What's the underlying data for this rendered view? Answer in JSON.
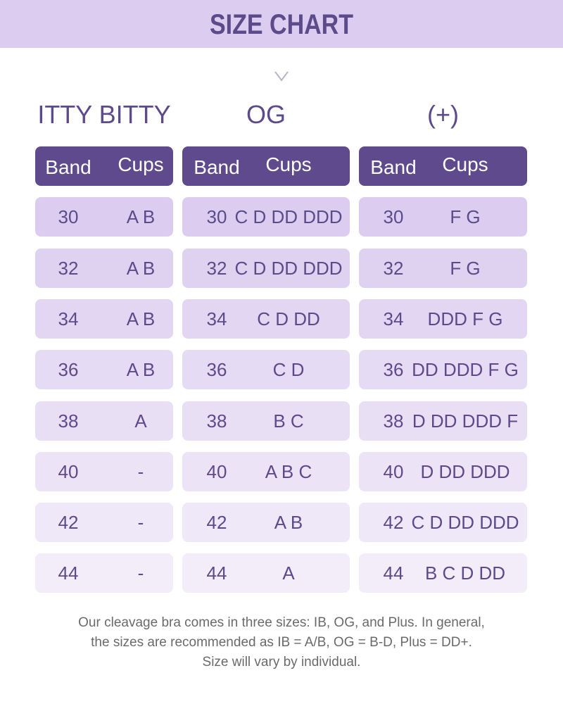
{
  "header": {
    "title": "SIZE CHART"
  },
  "tables": [
    {
      "title": "ITTY BITTY",
      "columns": [
        "Band",
        "Cups"
      ],
      "rows": [
        [
          "30",
          "A B"
        ],
        [
          "32",
          "A B"
        ],
        [
          "34",
          "A B"
        ],
        [
          "36",
          "A B"
        ],
        [
          "38",
          "A"
        ],
        [
          "40",
          "-"
        ],
        [
          "42",
          "-"
        ],
        [
          "44",
          "-"
        ]
      ]
    },
    {
      "title": "OG",
      "columns": [
        "Band",
        "Cups"
      ],
      "rows": [
        [
          "30",
          "C D DD DDD"
        ],
        [
          "32",
          "C D DD DDD"
        ],
        [
          "34",
          "C D DD"
        ],
        [
          "36",
          "C D"
        ],
        [
          "38",
          "B C"
        ],
        [
          "40",
          "A B C"
        ],
        [
          "42",
          "A B"
        ],
        [
          "44",
          "A"
        ]
      ]
    },
    {
      "title": "(+)",
      "columns": [
        "Band",
        "Cups"
      ],
      "rows": [
        [
          "30",
          "F G"
        ],
        [
          "32",
          "F G"
        ],
        [
          "34",
          "DDD F G"
        ],
        [
          "36",
          "DD DDD F G"
        ],
        [
          "38",
          "D DD DDD F"
        ],
        [
          "40",
          "D DD DDD"
        ],
        [
          "42",
          "C D DD DDD"
        ],
        [
          "44",
          "B C D DD"
        ]
      ]
    }
  ],
  "footer": {
    "lines": [
      "Our cleavage bra comes in three sizes: IB, OG, and Plus. In general,",
      "the sizes are recommended as IB = A/B, OG = B-D, Plus = DD+.",
      "Size will vary by individual."
    ]
  }
}
